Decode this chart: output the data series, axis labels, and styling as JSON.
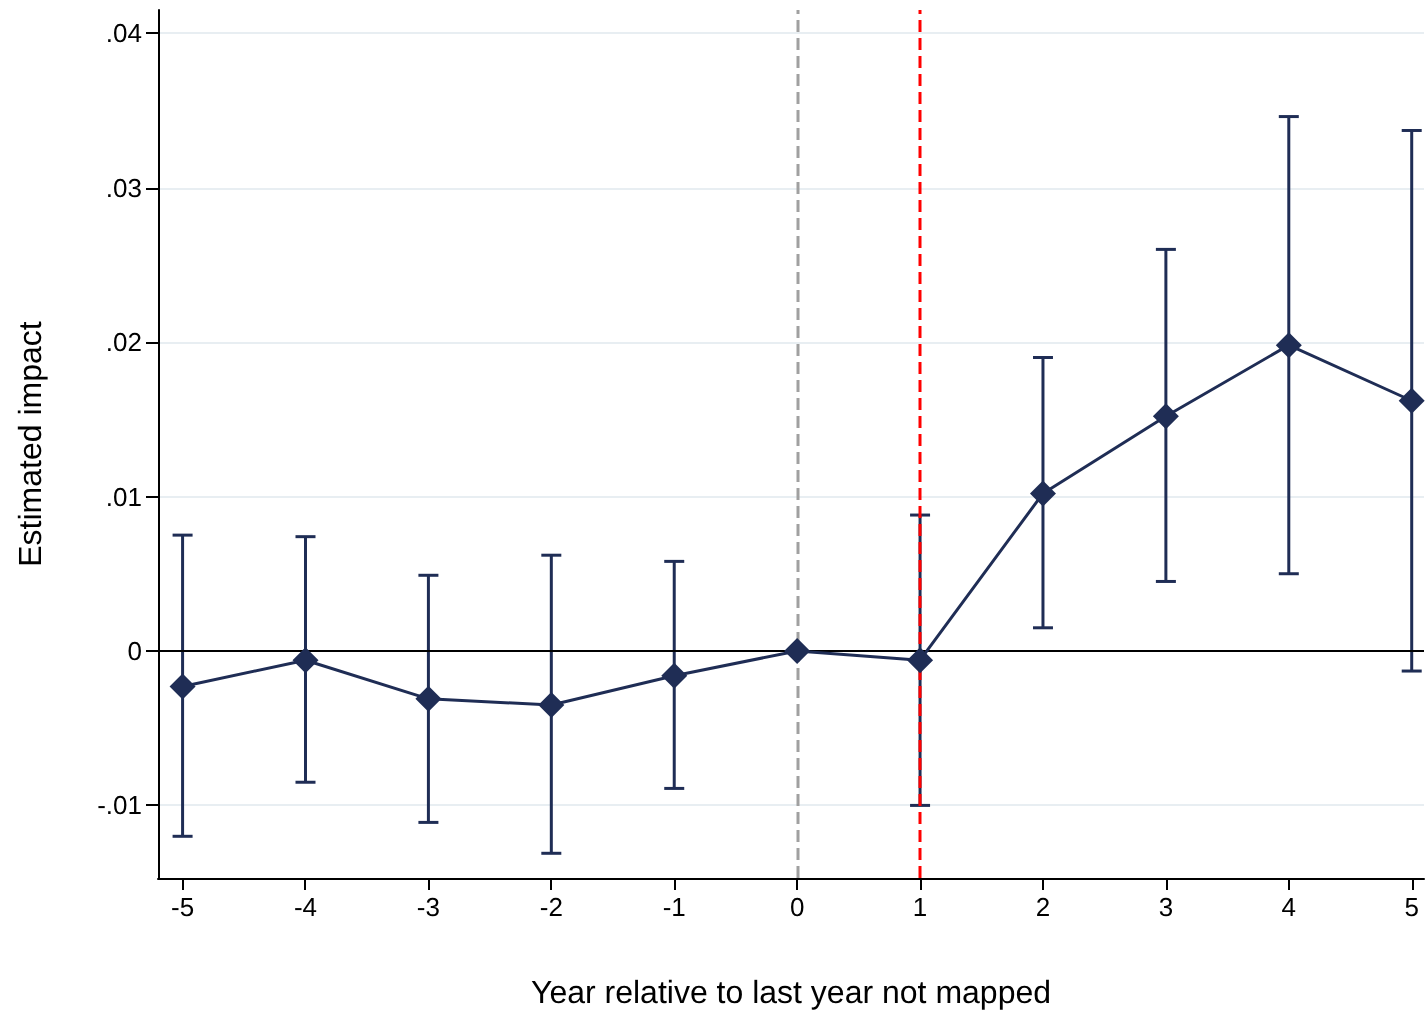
{
  "chart_data": {
    "type": "line",
    "xlabel": "Year relative to last year not mapped",
    "ylabel": "Estimated impact",
    "x": [
      -5,
      -4,
      -3,
      -2,
      -1,
      0,
      1,
      2,
      3,
      4,
      5
    ],
    "series": [
      {
        "color": "#1f2d55",
        "values": [
          -0.0023,
          -0.0006,
          -0.0031,
          -0.0035,
          -0.0016,
          0,
          -0.0006,
          0.0102,
          0.0152,
          0.0198,
          0.0162
        ],
        "errors": [
          [
            -0.012,
            0.0075
          ],
          [
            -0.0085,
            0.0074
          ],
          [
            -0.0111,
            0.0049
          ],
          [
            -0.0131,
            0.0062
          ],
          [
            -0.0089,
            0.0058
          ],
          null,
          [
            -0.01,
            0.0088
          ],
          [
            0.0015,
            0.019
          ],
          [
            0.0045,
            0.026
          ],
          [
            0.005,
            0.0346
          ],
          [
            -0.0013,
            0.0337
          ]
        ]
      }
    ],
    "xlim": [
      -5.2,
      5.1
    ],
    "xticks": [
      -5,
      -4,
      -3,
      -2,
      -1,
      0,
      1,
      2,
      3,
      4,
      5
    ],
    "ylim": [
      -0.0147,
      0.0415
    ],
    "yticks": [
      {
        "value": -0.01,
        "label": "-.01"
      },
      0,
      {
        "value": 0.01,
        "label": ".01"
      },
      {
        "value": 0.02,
        "label": ".02"
      },
      {
        "value": 0.03,
        "label": ".03"
      },
      {
        "value": 0.04,
        "label": ".04"
      }
    ],
    "ref_lines": [
      {
        "axis": "x",
        "value": 0,
        "color": "#a0a0a0",
        "line_style": "dashed"
      },
      {
        "axis": "x",
        "value": 1,
        "color": "#ff0000",
        "line_style": "dashed"
      },
      {
        "axis": "y",
        "value": 0,
        "color": "#000000",
        "line_style": "solid"
      }
    ],
    "grid": "y",
    "marker": "diamond",
    "line_style": "solid"
  }
}
